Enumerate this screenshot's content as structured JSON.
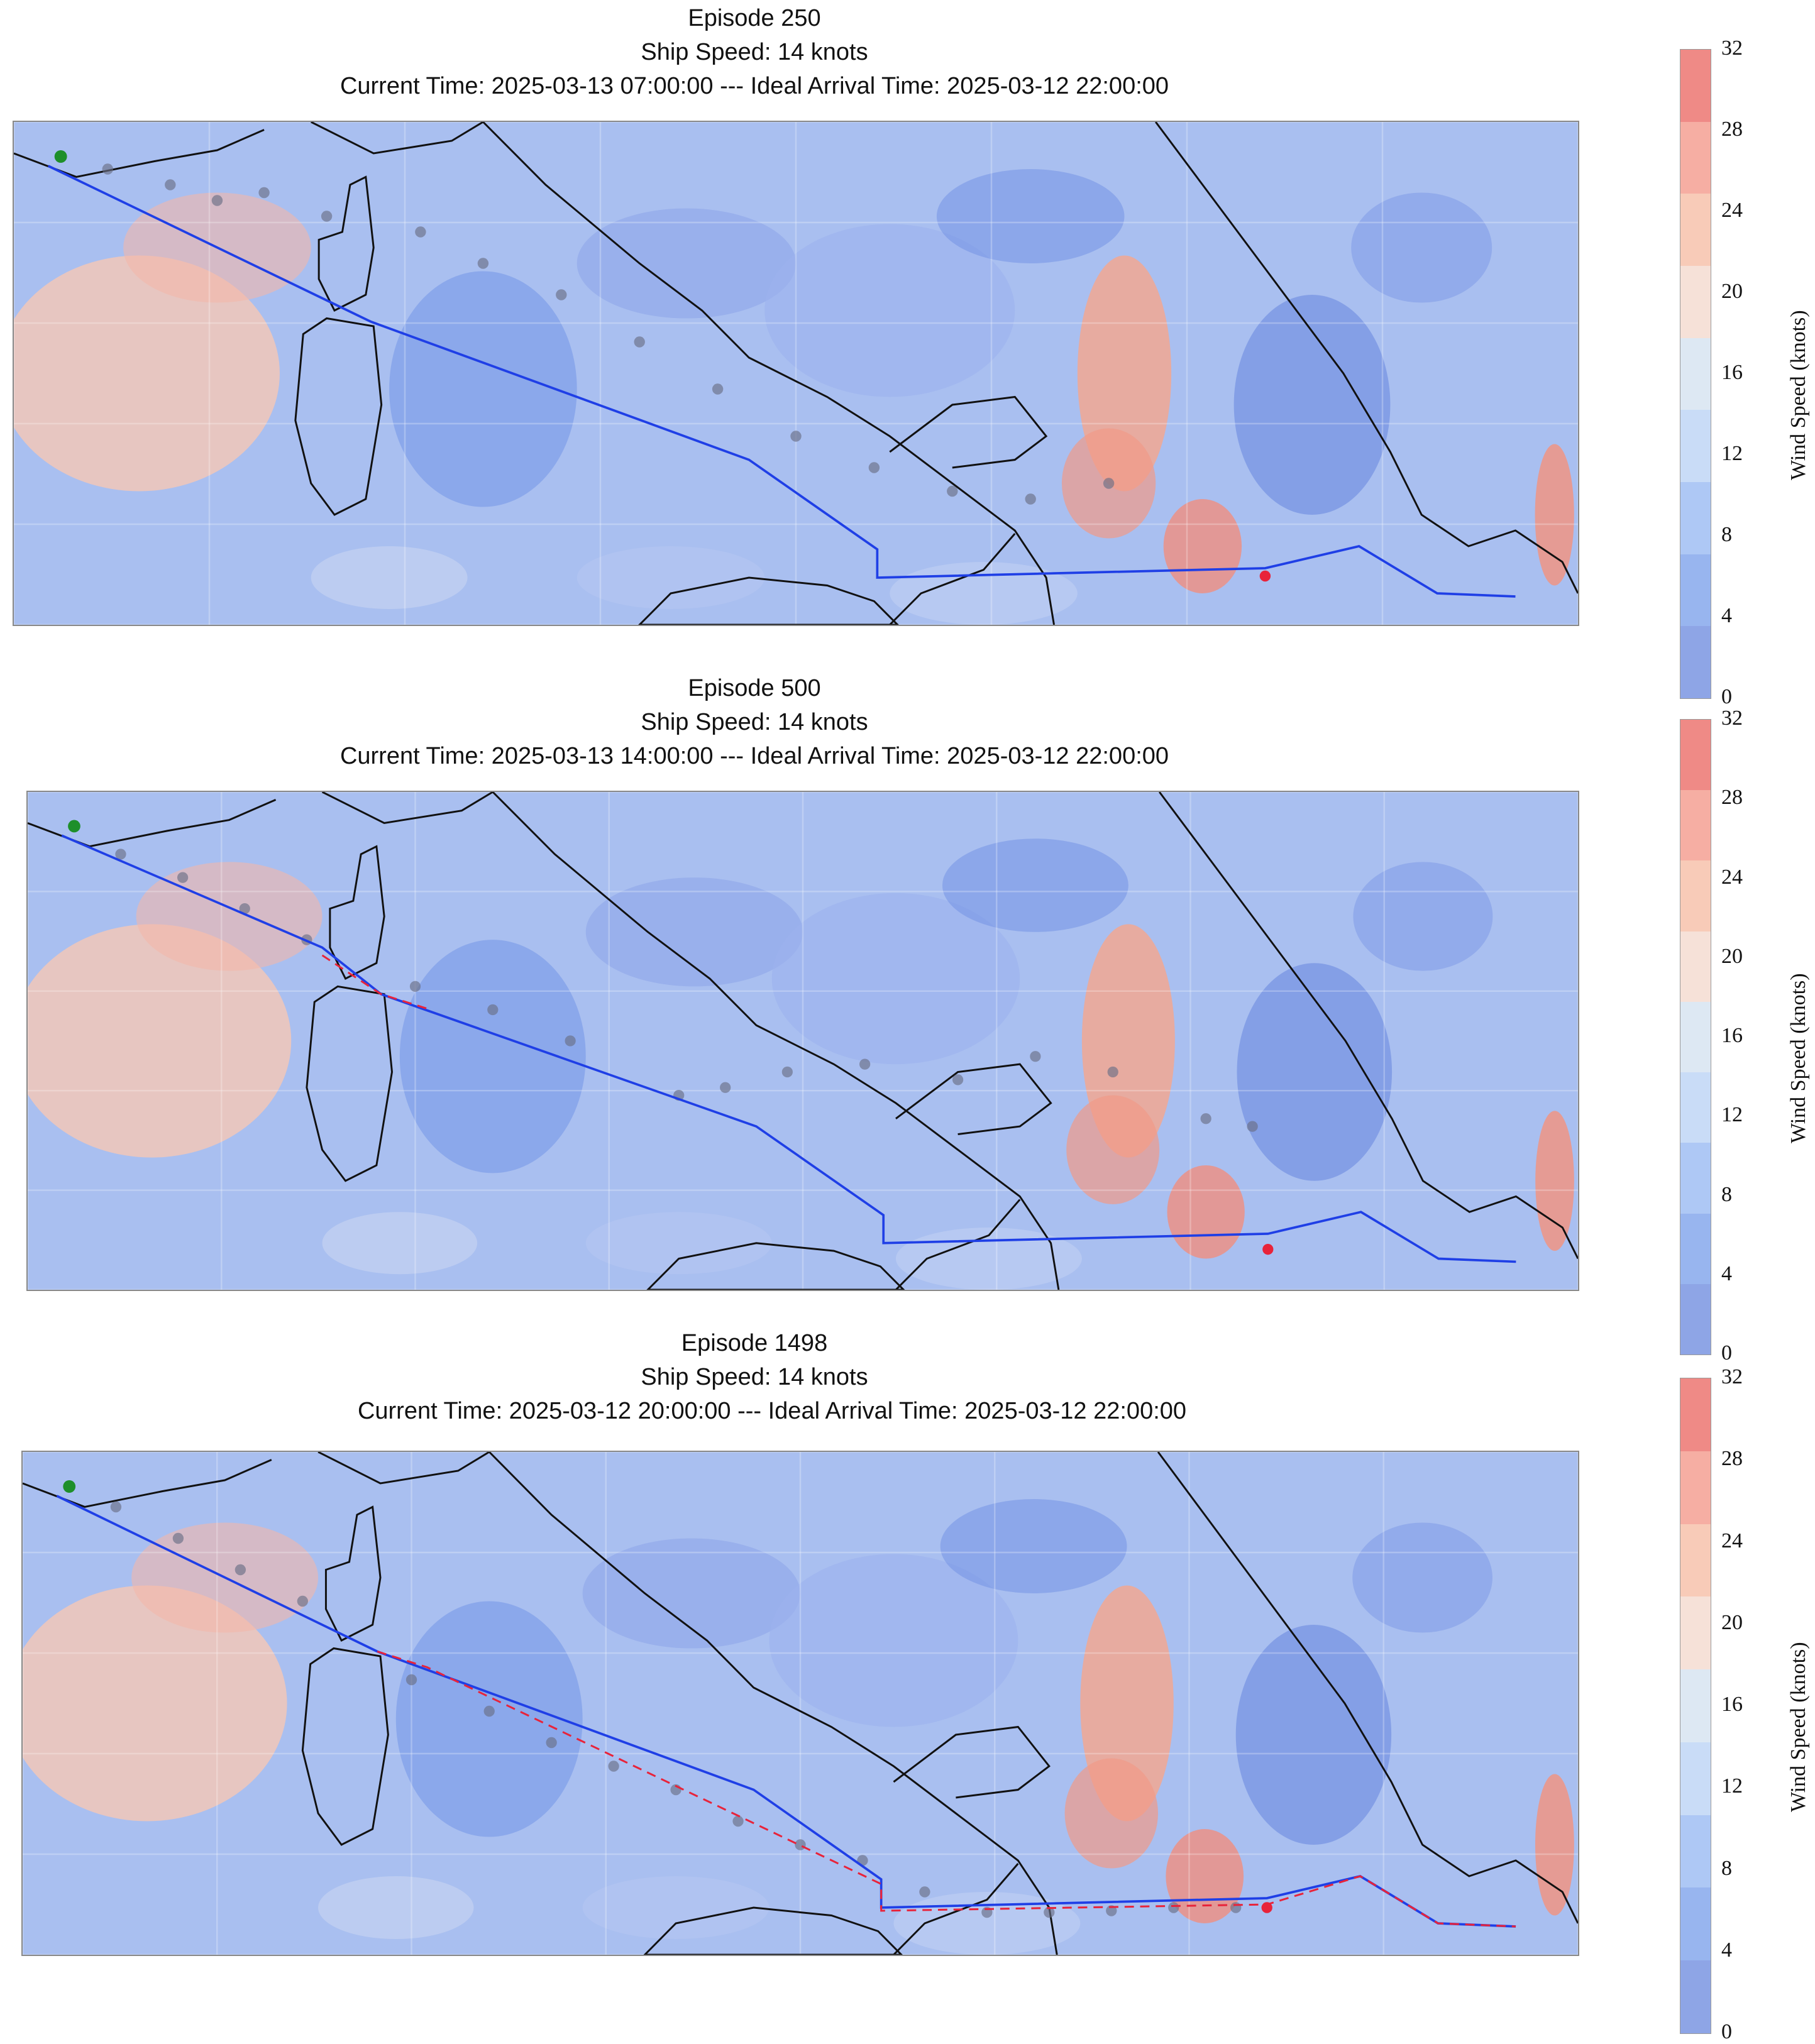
{
  "colorbar": {
    "label": "Wind Speed (knots)",
    "ticks": [
      "32",
      "28",
      "24",
      "20",
      "16",
      "12",
      "8",
      "4",
      "0"
    ],
    "bands": [
      "#ef8a86",
      "#f6aea3",
      "#f8cbb8",
      "#f6e1d8",
      "#dde8f3",
      "#c9dcf7",
      "#aec8f5",
      "#98b5ef",
      "#8ea5e6"
    ]
  },
  "route_colors": {
    "planned": "#1f3fe6",
    "deviation": "#e8233a",
    "start": "#1e8f2a",
    "end": "#e8233a"
  },
  "panels": [
    {
      "episode": "Episode 250",
      "speed": "Ship Speed: 14 knots",
      "time": "Current Time: 2025-03-13 07:00:00 --- Ideal Arrival Time: 2025-03-12 22:00:00"
    },
    {
      "episode": "Episode 500",
      "speed": "Ship Speed: 14 knots",
      "time": "Current Time: 2025-03-13 14:00:00 --- Ideal Arrival Time: 2025-03-12 22:00:00"
    },
    {
      "episode": "Episode 1498",
      "speed": "Ship Speed: 14 knots",
      "time": "Current Time: 2025-03-12 20:00:00 --- Ideal Arrival Time: 2025-03-12 22:00:00"
    }
  ]
}
